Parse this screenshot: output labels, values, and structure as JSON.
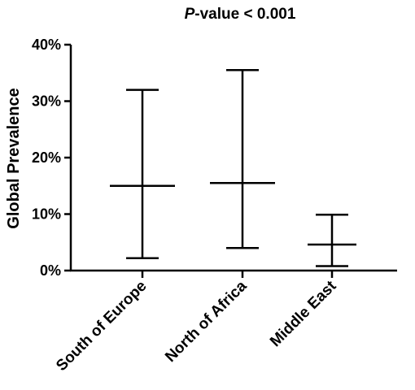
{
  "chart_data": {
    "type": "error-bar",
    "title_prefix": "P",
    "title_suffix": "-value < 0.001",
    "ylabel": "Global Prevalence",
    "xlabel": "",
    "ylim": [
      0,
      40
    ],
    "yticks": [
      0,
      10,
      20,
      30,
      40
    ],
    "ytick_labels": [
      "0%",
      "10%",
      "20%",
      "30%",
      "40%"
    ],
    "categories": [
      "South of Europe",
      "North of Africa",
      "Middle East"
    ],
    "series": [
      {
        "center": [
          15.0,
          15.5,
          4.6
        ],
        "low": [
          2.2,
          4.0,
          0.8
        ],
        "high": [
          32.0,
          35.5,
          9.9
        ]
      }
    ],
    "grid": false,
    "legend": "none"
  }
}
